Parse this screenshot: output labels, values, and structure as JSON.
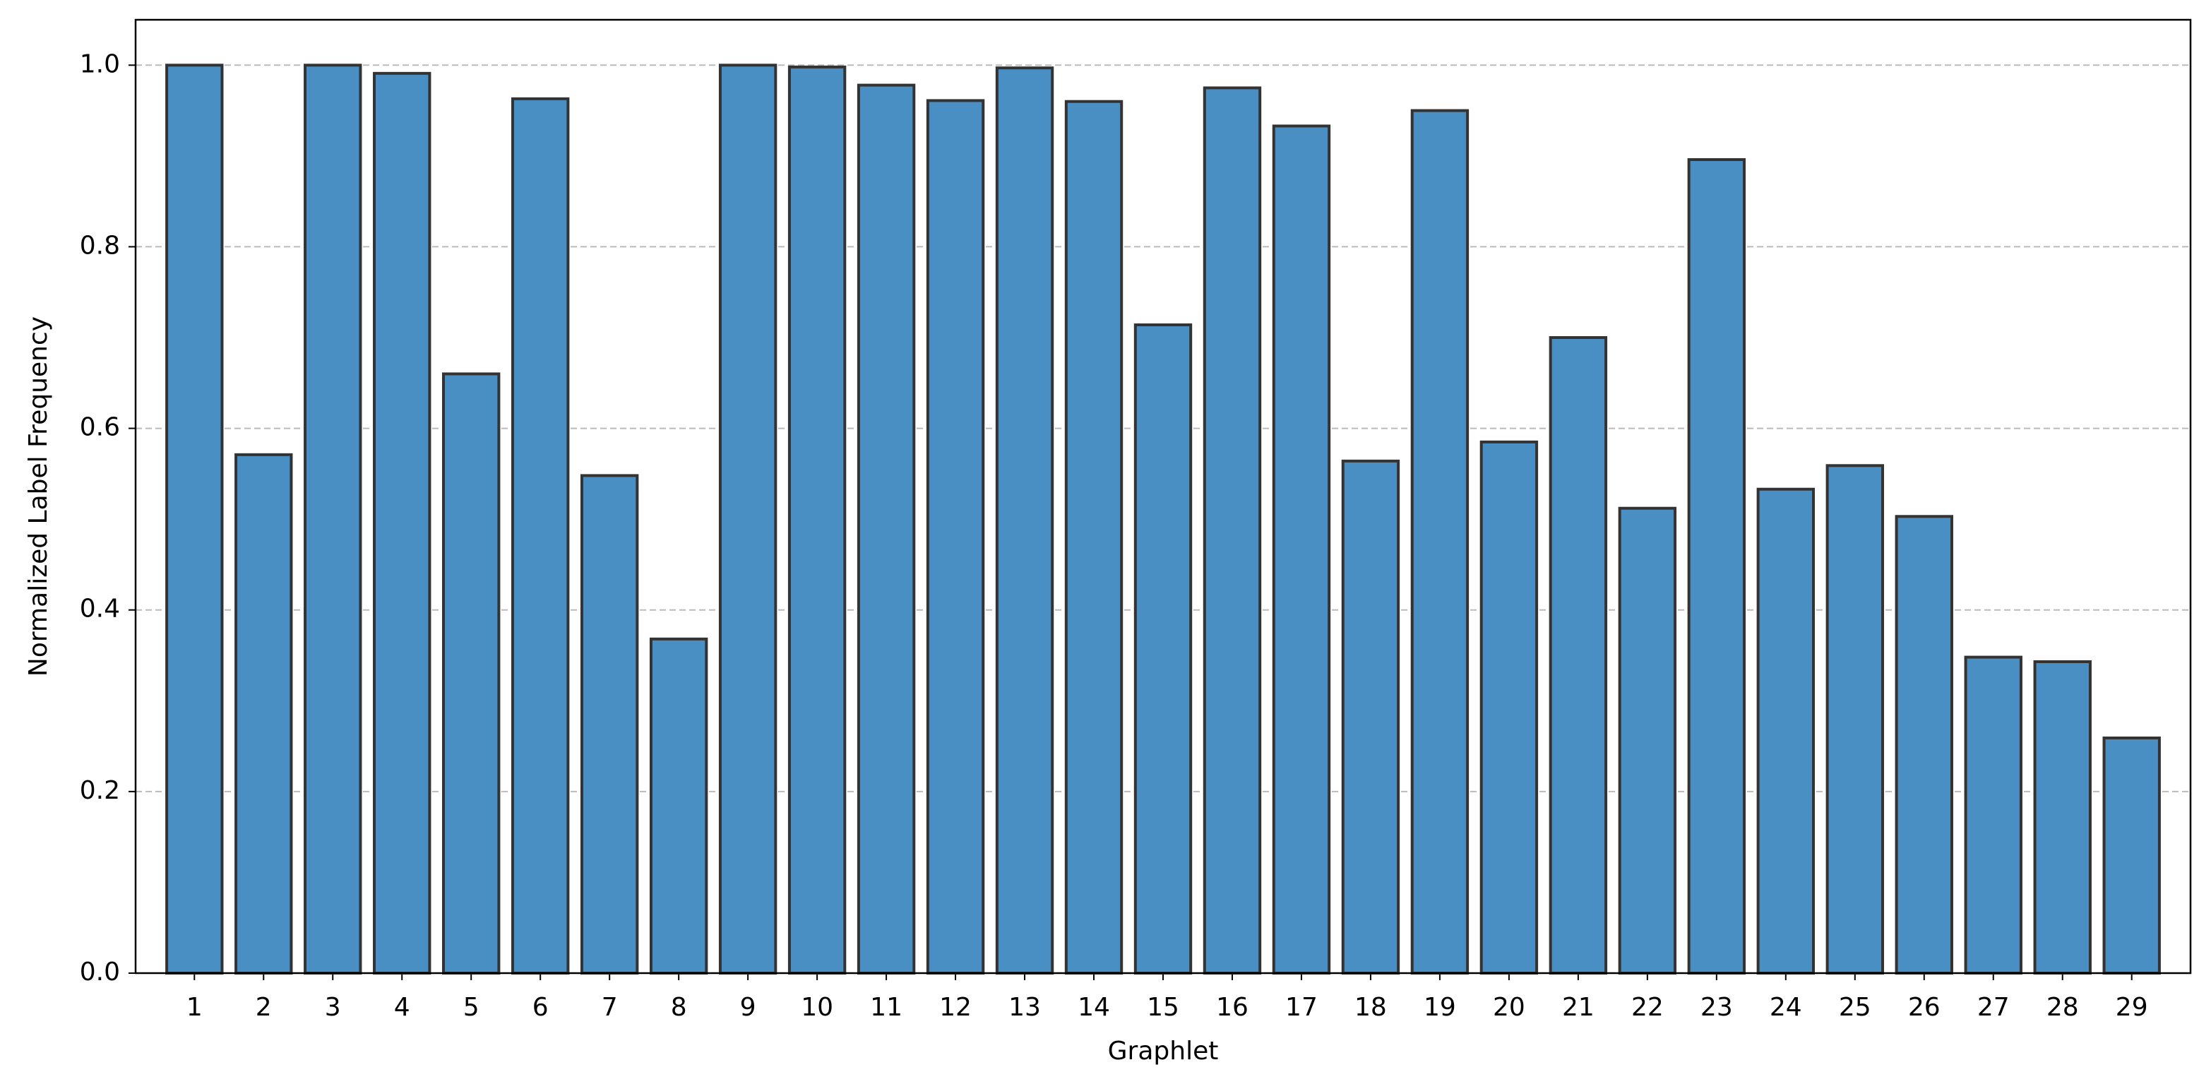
{
  "chart_data": {
    "type": "bar",
    "x_label": "Graphlet",
    "y_label": "Normalized Label Frequency",
    "categories": [
      "1",
      "2",
      "3",
      "4",
      "5",
      "6",
      "7",
      "8",
      "9",
      "10",
      "11",
      "12",
      "13",
      "14",
      "15",
      "16",
      "17",
      "18",
      "19",
      "20",
      "21",
      "22",
      "23",
      "24",
      "25",
      "26",
      "27",
      "28",
      "29"
    ],
    "values": [
      1.0,
      0.571,
      1.0,
      0.991,
      0.66,
      0.963,
      0.548,
      0.368,
      1.0,
      0.998,
      0.978,
      0.961,
      0.997,
      0.96,
      0.714,
      0.975,
      0.933,
      0.564,
      0.95,
      0.585,
      0.7,
      0.512,
      0.896,
      0.533,
      0.559,
      0.503,
      0.348,
      0.343,
      0.259
    ],
    "color": "#4a8fc4",
    "edge_color": "#333333",
    "ylim": [
      0,
      1.05
    ],
    "yticks": [
      {
        "value": 0,
        "label": "0.0"
      },
      0.2,
      0.4,
      0.6,
      0.8,
      {
        "value": 1,
        "label": "1.0"
      }
    ],
    "grid": true
  }
}
